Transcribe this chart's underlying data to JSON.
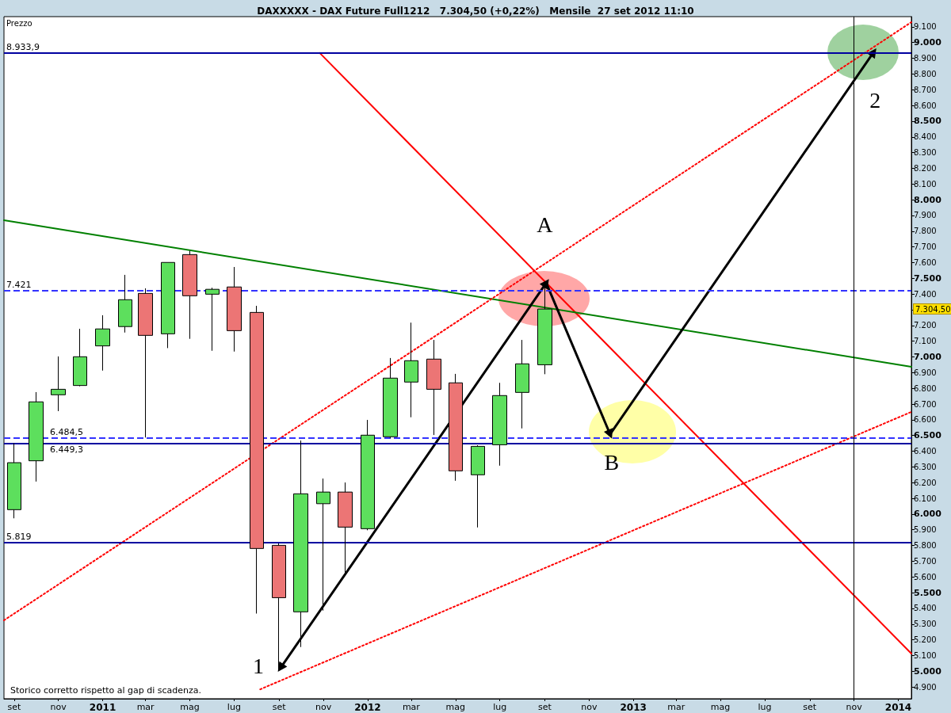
{
  "chart_data": {
    "type": "candlestick",
    "title": "DAXXXXX - DAX Future Full1212   7.304,50 (+0,22%)   Mensile  27 set 2012 11:10",
    "ylabel": "Prezzo",
    "x": [
      "2010-09",
      "2010-10",
      "2010-11",
      "2010-12",
      "2011-01",
      "2011-02",
      "2011-03",
      "2011-04",
      "2011-05",
      "2011-06",
      "2011-07",
      "2011-08",
      "2011-09",
      "2011-10",
      "2011-11",
      "2011-12",
      "2012-01",
      "2012-02",
      "2012-03",
      "2012-04",
      "2012-05",
      "2012-06",
      "2012-07",
      "2012-08",
      "2012-09"
    ],
    "ohlc": [
      [
        6028,
        6451,
        5973,
        6327
      ],
      [
        6339,
        6776,
        6207,
        6714
      ],
      [
        6759,
        7003,
        6655,
        6794
      ],
      [
        6818,
        7179,
        6813,
        7001
      ],
      [
        7070,
        7265,
        6913,
        7178
      ],
      [
        7193,
        7522,
        7155,
        7364
      ],
      [
        7404,
        7436,
        6487,
        7137
      ],
      [
        7147,
        7601,
        7056,
        7601
      ],
      [
        7651,
        7675,
        7115,
        7389
      ],
      [
        7399,
        7440,
        7039,
        7430
      ],
      [
        7445,
        7572,
        7034,
        7167
      ],
      [
        7283,
        7325,
        5367,
        5781
      ],
      [
        5801,
        5813,
        5011,
        5468
      ],
      [
        5378,
        6468,
        5154,
        6129
      ],
      [
        6066,
        6226,
        5386,
        6140
      ],
      [
        6140,
        6201,
        5625,
        5917
      ],
      [
        5907,
        6599,
        5897,
        6502
      ],
      [
        6492,
        6993,
        6482,
        6865
      ],
      [
        6840,
        7218,
        6616,
        6976
      ],
      [
        6986,
        7108,
        6503,
        6794
      ],
      [
        6835,
        6892,
        6212,
        6275
      ],
      [
        6250,
        6438,
        5915,
        6431
      ],
      [
        6441,
        6835,
        6308,
        6754
      ],
      [
        6774,
        7108,
        6545,
        6956
      ],
      [
        6950,
        7450,
        6890,
        7304.5
      ]
    ],
    "colors": [
      "#5ddf5d",
      "#5ddf5d",
      "#5ddf5d",
      "#5ddf5d",
      "#5ddf5d",
      "#5ddf5d",
      "#ec7575",
      "#5ddf5d",
      "#ec7575",
      "#5ddf5d",
      "#ec7575",
      "#ec7575",
      "#ec7575",
      "#5ddf5d",
      "#5ddf5d",
      "#ec7575",
      "#5ddf5d",
      "#5ddf5d",
      "#5ddf5d",
      "#ec7575",
      "#ec7575",
      "#5ddf5d",
      "#5ddf5d",
      "#5ddf5d",
      "#5ddf5d"
    ],
    "series": [
      {
        "type": "line",
        "x": [
          "2011-10-27",
          "2014-01-19"
        ],
        "values": [
          8934,
          5112
        ],
        "color": "#ff0000",
        "line_style": "solid",
        "marker": "none"
      },
      {
        "type": "line",
        "x": [
          "2010-08-18",
          "2014-01-19"
        ],
        "values": [
          7870,
          6937
        ],
        "color": "#008000",
        "line_style": "solid",
        "marker": "none"
      },
      {
        "type": "line",
        "x": [
          "2010-08-18",
          "2014-01-19"
        ],
        "values": [
          5324,
          9130
        ],
        "color": "#ff0000",
        "line_style": "dotted",
        "marker": "none"
      },
      {
        "type": "line",
        "x": [
          "2011-08-06",
          "2014-01-19"
        ],
        "values": [
          4885,
          6650
        ],
        "color": "#ff0000",
        "line_style": "dotted",
        "marker": "none"
      },
      {
        "type": "line",
        "x": [
          "2011-09-03",
          "2012-09-03",
          "2012-11-30",
          "2013-11-28"
        ],
        "values": [
          5021,
          7471,
          6508,
          8939
        ],
        "color": "#000000",
        "line_style": "solid",
        "marker": "triangle"
      }
    ],
    "xlim": [
      "2010-08-18",
      "2014-01-19"
    ],
    "xticks": [
      {
        "value": "2010-09",
        "label": "set"
      },
      {
        "value": "2010-11",
        "label": "nov"
      },
      {
        "value": "2011-01",
        "label": "2011"
      },
      {
        "value": "2011-03",
        "label": "mar"
      },
      {
        "value": "2011-05",
        "label": "mag"
      },
      {
        "value": "2011-07",
        "label": "lug"
      },
      {
        "value": "2011-09",
        "label": "set"
      },
      {
        "value": "2011-11",
        "label": "nov"
      },
      {
        "value": "2012-01",
        "label": "2012"
      },
      {
        "value": "2012-03",
        "label": "mar"
      },
      {
        "value": "2012-05",
        "label": "mag"
      },
      {
        "value": "2012-07",
        "label": "lug"
      },
      {
        "value": "2012-09",
        "label": "set"
      },
      {
        "value": "2012-11",
        "label": "nov"
      },
      {
        "value": "2013-01",
        "label": "2013"
      },
      {
        "value": "2013-03",
        "label": "mar"
      },
      {
        "value": "2013-05",
        "label": "mag"
      },
      {
        "value": "2013-07",
        "label": "lug"
      },
      {
        "value": "2013-09",
        "label": "set"
      },
      {
        "value": "2013-11",
        "label": "nov"
      },
      {
        "value": "2014-01",
        "label": "2014"
      }
    ],
    "ylim": [
      4825,
      9165
    ],
    "yticks": [
      {
        "value": 4900,
        "label": "4.900"
      },
      {
        "value": 5000,
        "label": "5.000"
      },
      {
        "value": 5100,
        "label": "5.100"
      },
      {
        "value": 5200,
        "label": "5.200"
      },
      {
        "value": 5300,
        "label": "5.300"
      },
      {
        "value": 5400,
        "label": "5.400"
      },
      {
        "value": 5500,
        "label": "5.500"
      },
      {
        "value": 5600,
        "label": "5.600"
      },
      {
        "value": 5700,
        "label": "5.700"
      },
      {
        "value": 5800,
        "label": "5.800"
      },
      {
        "value": 5900,
        "label": "5.900"
      },
      {
        "value": 6000,
        "label": "6.000"
      },
      {
        "value": 6100,
        "label": "6.100"
      },
      {
        "value": 6200,
        "label": "6.200"
      },
      {
        "value": 6300,
        "label": "6.300"
      },
      {
        "value": 6400,
        "label": "6.400"
      },
      {
        "value": 6500,
        "label": "6.500"
      },
      {
        "value": 6600,
        "label": "6.600"
      },
      {
        "value": 6700,
        "label": "6.700"
      },
      {
        "value": 6800,
        "label": "6.800"
      },
      {
        "value": 6900,
        "label": "6.900"
      },
      {
        "value": 7000,
        "label": "7.000"
      },
      {
        "value": 7100,
        "label": "7.100"
      },
      {
        "value": 7200,
        "label": "7.200"
      },
      {
        "value": 7300,
        "label": null
      },
      {
        "value": 7400,
        "label": "7.400"
      },
      {
        "value": 7500,
        "label": "7.500"
      },
      {
        "value": 7600,
        "label": "7.600"
      },
      {
        "value": 7700,
        "label": "7.700"
      },
      {
        "value": 7800,
        "label": "7.800"
      },
      {
        "value": 7900,
        "label": "7.900"
      },
      {
        "value": 8000,
        "label": "8.000"
      },
      {
        "value": 8100,
        "label": "8.100"
      },
      {
        "value": 8200,
        "label": "8.200"
      },
      {
        "value": 8300,
        "label": "8.300"
      },
      {
        "value": 8400,
        "label": "8.400"
      },
      {
        "value": 8500,
        "label": "8.500"
      },
      {
        "value": 8600,
        "label": "8.600"
      },
      {
        "value": 8700,
        "label": "8.700"
      },
      {
        "value": 8800,
        "label": "8.800"
      },
      {
        "value": 8900,
        "label": "8.900"
      },
      {
        "value": 9000,
        "label": "9.000"
      },
      {
        "value": 9100,
        "label": "9.100"
      }
    ],
    "ref_lines": [
      {
        "axis": "y",
        "value": 8933.9,
        "label": "8.933,9",
        "color": "#0000a0",
        "line_style": "solid"
      },
      {
        "axis": "y",
        "value": 7421,
        "label": "7.421",
        "color": "#3333ff",
        "line_style": "dashed"
      },
      {
        "axis": "y",
        "value": 6484.5,
        "label": "6.484,5",
        "color": "#3333ff",
        "line_style": "dashed"
      },
      {
        "axis": "y",
        "value": 6449.3,
        "label": "6.449,3",
        "color": "#0000a0",
        "line_style": "solid"
      },
      {
        "axis": "y",
        "value": 5819,
        "label": "5.819",
        "color": "#0000a0",
        "line_style": "solid"
      },
      {
        "axis": "x",
        "value": "2013-11",
        "label": null,
        "color": "#000000",
        "line_style": "solid"
      }
    ],
    "annotations": [
      "1",
      "A",
      "B",
      "2",
      "7.304,50",
      "Storico corretto rispetto al gap di scadenza."
    ],
    "grid": false
  }
}
